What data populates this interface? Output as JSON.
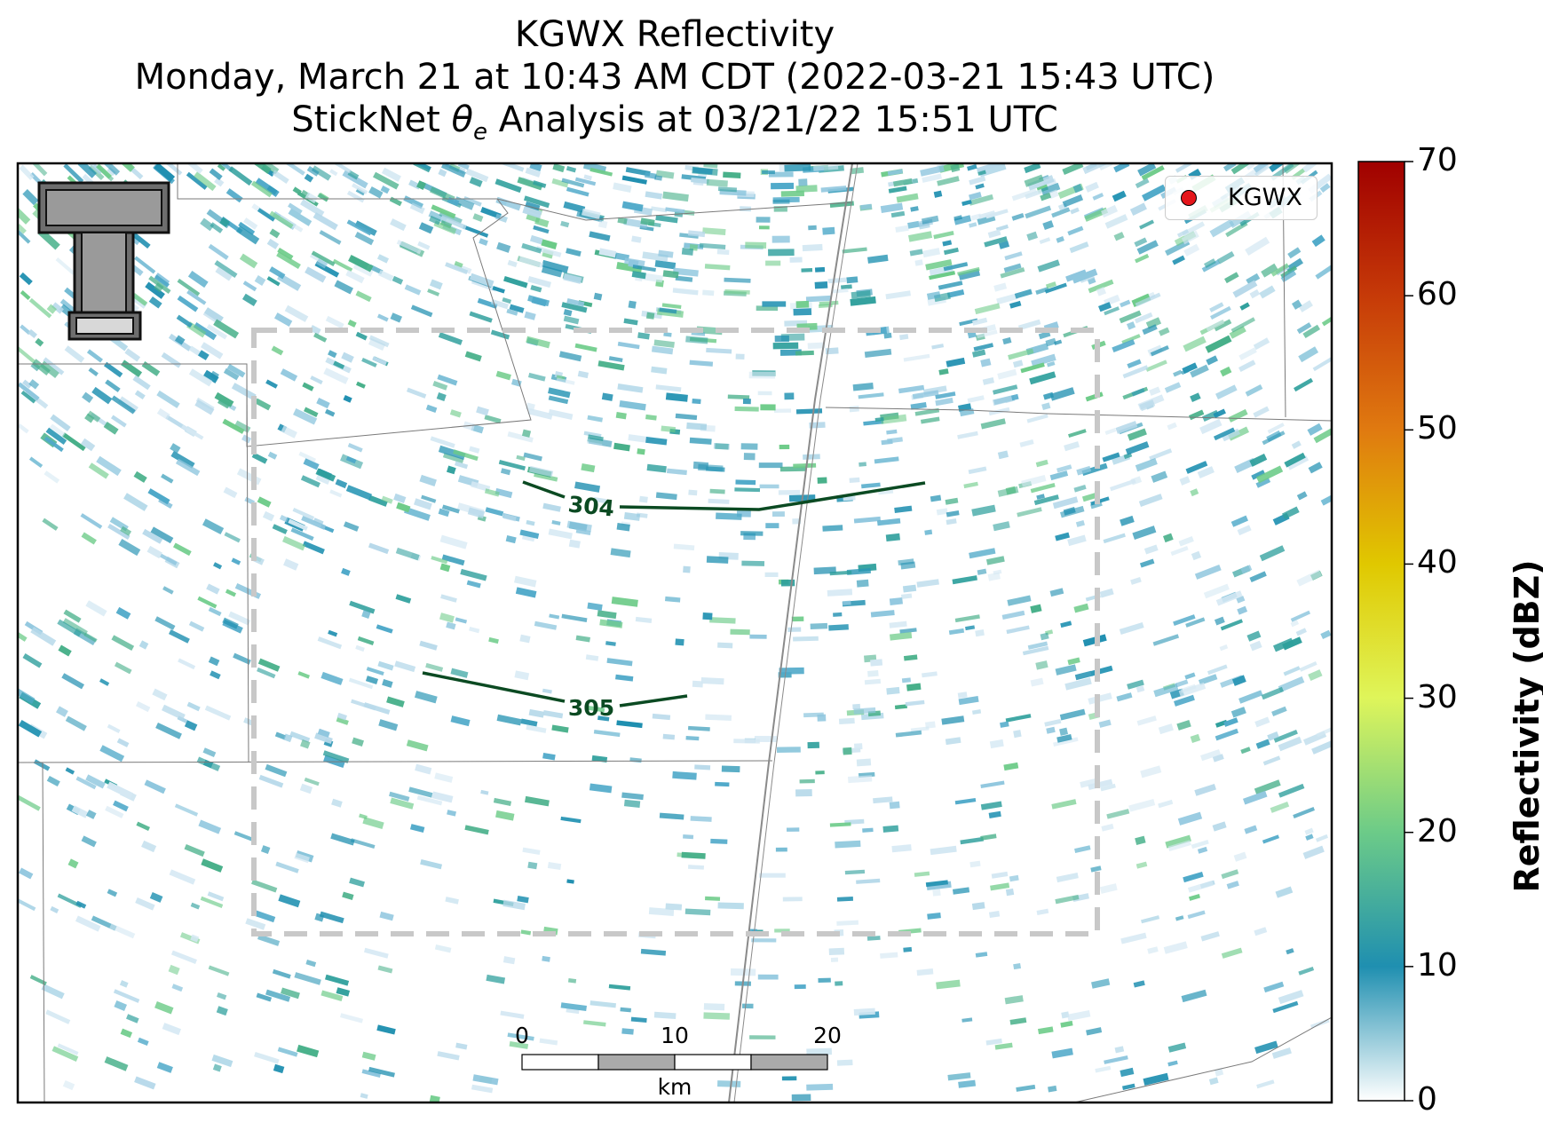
{
  "header": {
    "title_line1": "KGWX Reflectivity",
    "title_line2": "Monday, March 21 at 10:43 AM CDT (2022-03-21 15:43 UTC)",
    "title_line3_prefix": "StickNet ",
    "title_line3_symbol": "θ",
    "title_line3_subscript": "e",
    "title_line3_suffix": " Analysis at 03/21/22 15:51 UTC"
  },
  "legend": {
    "label": "KGWX",
    "marker_color": "#e5161b"
  },
  "colorbar": {
    "label": "Reflectivity (dBZ)",
    "min": 0,
    "max": 70,
    "ticks": [
      "0",
      "10",
      "20",
      "30",
      "40",
      "50",
      "60",
      "70"
    ],
    "colors": [
      "#ffffff",
      "#1f8fb0",
      "#6ccb88",
      "#dff55a",
      "#e0c800",
      "#e07a10",
      "#c63a08",
      "#a00000"
    ]
  },
  "contours": [
    {
      "label": "304",
      "color": "#0b4a22"
    },
    {
      "label": "305",
      "color": "#0b4a22"
    }
  ],
  "scale_bar": {
    "ticks": [
      "0",
      "10",
      "20"
    ],
    "unit": "km"
  },
  "analysis_box": {
    "style": "dashed",
    "color": "#c8c8c8"
  },
  "logo": {
    "name": "texas-tech-double-t-logo"
  }
}
